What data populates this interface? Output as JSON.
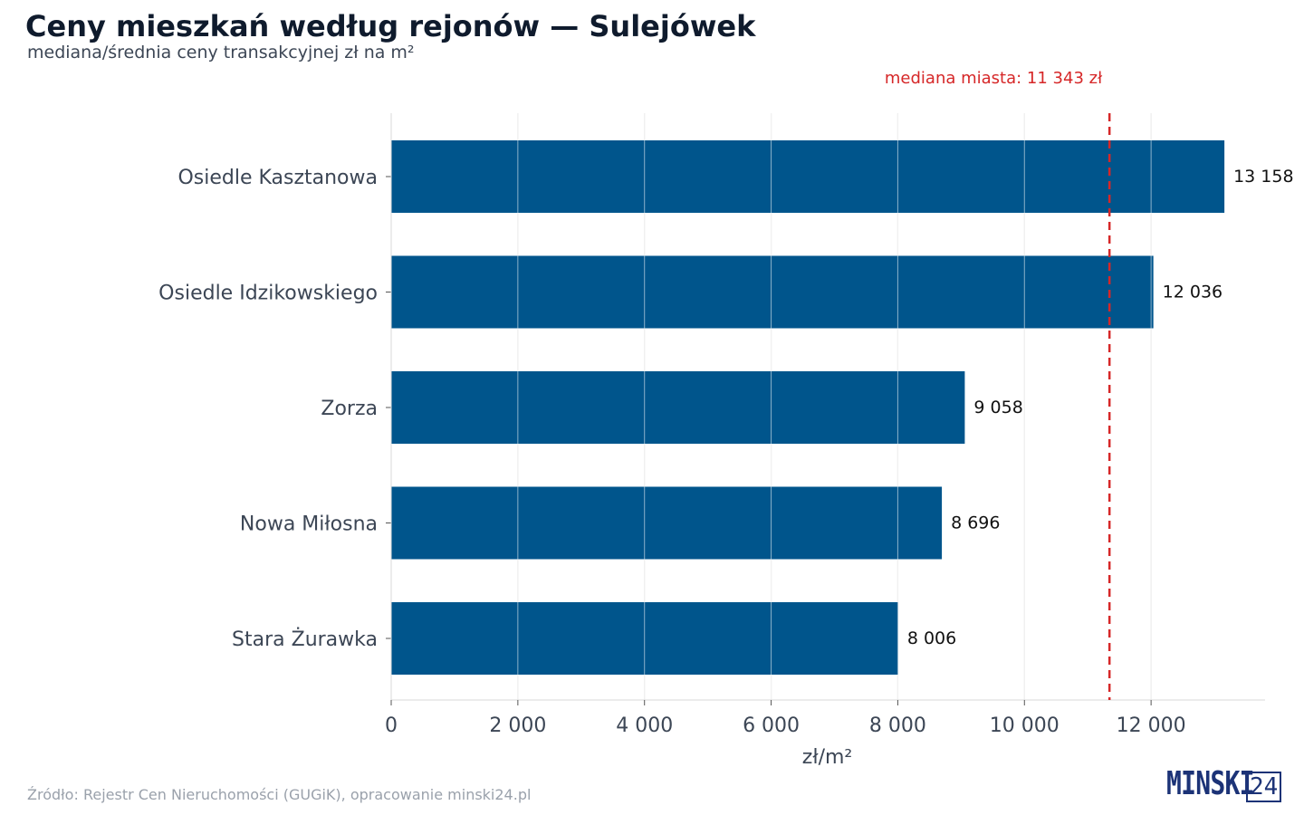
{
  "title": "Ceny mieszkań według rejonów — Sulejówek",
  "subtitle": "mediana/średnia ceny transakcyjnej zł na m²",
  "source": "Źródło: Rejestr Cen Nieruchomości (GUGiK), opracowanie minski24.pl",
  "logo": {
    "word": "MINSKI",
    "number": "24"
  },
  "chart_data": {
    "type": "bar",
    "orientation": "horizontal",
    "categories": [
      "Osiedle Kasztanowa",
      "Osiedle Idzikowskiego",
      "Zorza",
      "Nowa Miłosna",
      "Stara Żurawka"
    ],
    "values": [
      13158,
      12036,
      9058,
      8696,
      8006
    ],
    "value_labels": [
      "13 158",
      "12 036",
      "9 058",
      "8 696",
      "8 006"
    ],
    "xlabel": "zł/m²",
    "xlim": [
      0,
      13800
    ],
    "xticks": [
      0,
      2000,
      4000,
      6000,
      8000,
      10000,
      12000
    ],
    "xtick_labels": [
      "0",
      "2 000",
      "4 000",
      "6 000",
      "8 000",
      "10 000",
      "12 000"
    ],
    "grid": true,
    "reference_line": {
      "value": 11343,
      "label": "mediana miasta: 11 343 zł",
      "style": "dashed"
    },
    "colors": {
      "bar": "#00558c",
      "reference": "#d62728",
      "grid": "#e2e2e2"
    }
  }
}
